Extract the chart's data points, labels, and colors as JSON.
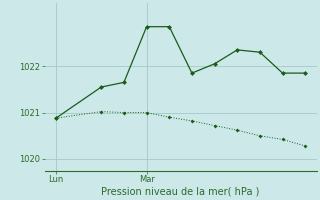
{
  "xlabel": "Pression niveau de la mer( hPa )",
  "background_color": "#cce8e8",
  "line_color": "#1a5c1a",
  "grid_color": "#a8c8c8",
  "tick_color": "#2a6c2a",
  "series1_x": [
    0,
    2,
    3,
    4,
    5,
    6,
    7,
    8,
    9,
    10,
    11
  ],
  "series1_y": [
    1020.88,
    1021.55,
    1021.65,
    1022.85,
    1022.85,
    1021.85,
    1022.05,
    1022.35,
    1022.3,
    1021.85,
    1021.85
  ],
  "series2_x": [
    0,
    2,
    3,
    4,
    5,
    6,
    7,
    8,
    9,
    10,
    11
  ],
  "series2_y": [
    1020.88,
    1021.02,
    1021.0,
    1021.0,
    1020.9,
    1020.82,
    1020.72,
    1020.62,
    1020.5,
    1020.42,
    1020.28
  ],
  "lun_x": 0,
  "mar_x": 4,
  "ylim_min": 1019.75,
  "ylim_max": 1023.35,
  "yticks": [
    1020,
    1021,
    1022
  ],
  "xlim_min": -0.5,
  "xlim_max": 11.5,
  "figsize": [
    3.2,
    2.0
  ],
  "dpi": 100
}
